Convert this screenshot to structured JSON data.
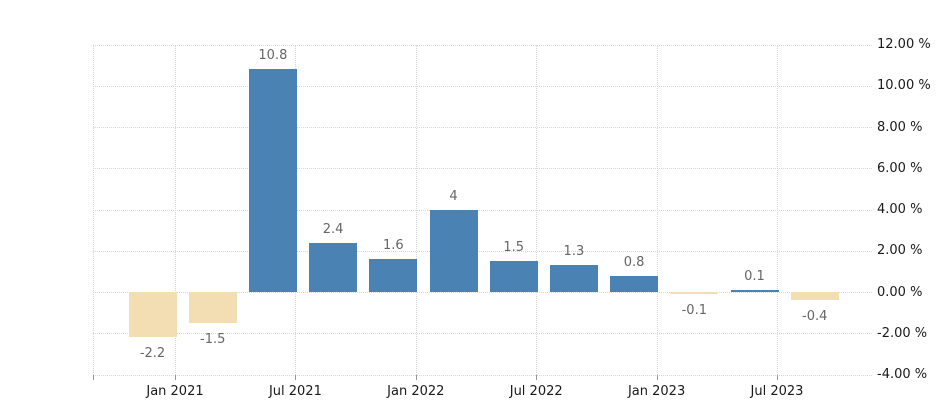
{
  "chart_data": {
    "type": "bar",
    "title": "",
    "xlabel": "",
    "ylabel": "",
    "categories": [
      "2021-Q1",
      "2021-Q2",
      "2021-Q3",
      "2021-Q4",
      "2022-Q1",
      "2022-Q2",
      "2022-Q3",
      "2022-Q4",
      "2023-Q1",
      "2023-Q2",
      "2023-Q3",
      "2023-Q4"
    ],
    "values": [
      -2.2,
      -1.5,
      10.8,
      2.4,
      1.6,
      4,
      1.5,
      1.3,
      0.8,
      -0.1,
      0.1,
      -0.4
    ],
    "value_labels": [
      "-2.2",
      "-1.5",
      "10.8",
      "2.4",
      "1.6",
      "4",
      "1.5",
      "1.3",
      "0.8",
      "-0.1",
      "0.1",
      "-0.4"
    ],
    "x_tick_labels": [
      "Jan 2021",
      "Jul 2021",
      "Jan 2022",
      "Jul 2022",
      "Jan 2023",
      "Jul 2023"
    ],
    "x_tick_after_bar": [
      0,
      2,
      4,
      6,
      8,
      10
    ],
    "y_ticks": [
      {
        "v": 12,
        "label": "12.00 %"
      },
      {
        "v": 10,
        "label": "10.00 %"
      },
      {
        "v": 8,
        "label": "8.00 %"
      },
      {
        "v": 6,
        "label": "6.00 %"
      },
      {
        "v": 4,
        "label": "4.00 %"
      },
      {
        "v": 2,
        "label": "2.00 %"
      },
      {
        "v": 0,
        "label": "0.00 %"
      },
      {
        "v": -2,
        "label": "-2.00 %"
      },
      {
        "v": -4,
        "label": "-4.00 %"
      }
    ],
    "ylim": [
      -4,
      12
    ],
    "grid": true,
    "legend": false,
    "colors": {
      "positive_bar": "#4A82B4",
      "negative_bar": "#F2DEB2",
      "gridline": "#D6D6D6",
      "value_label": "#666666",
      "axis_label": "#1A1A1A",
      "tick": "#9A9A9A",
      "background": "#FFFFFF"
    }
  }
}
